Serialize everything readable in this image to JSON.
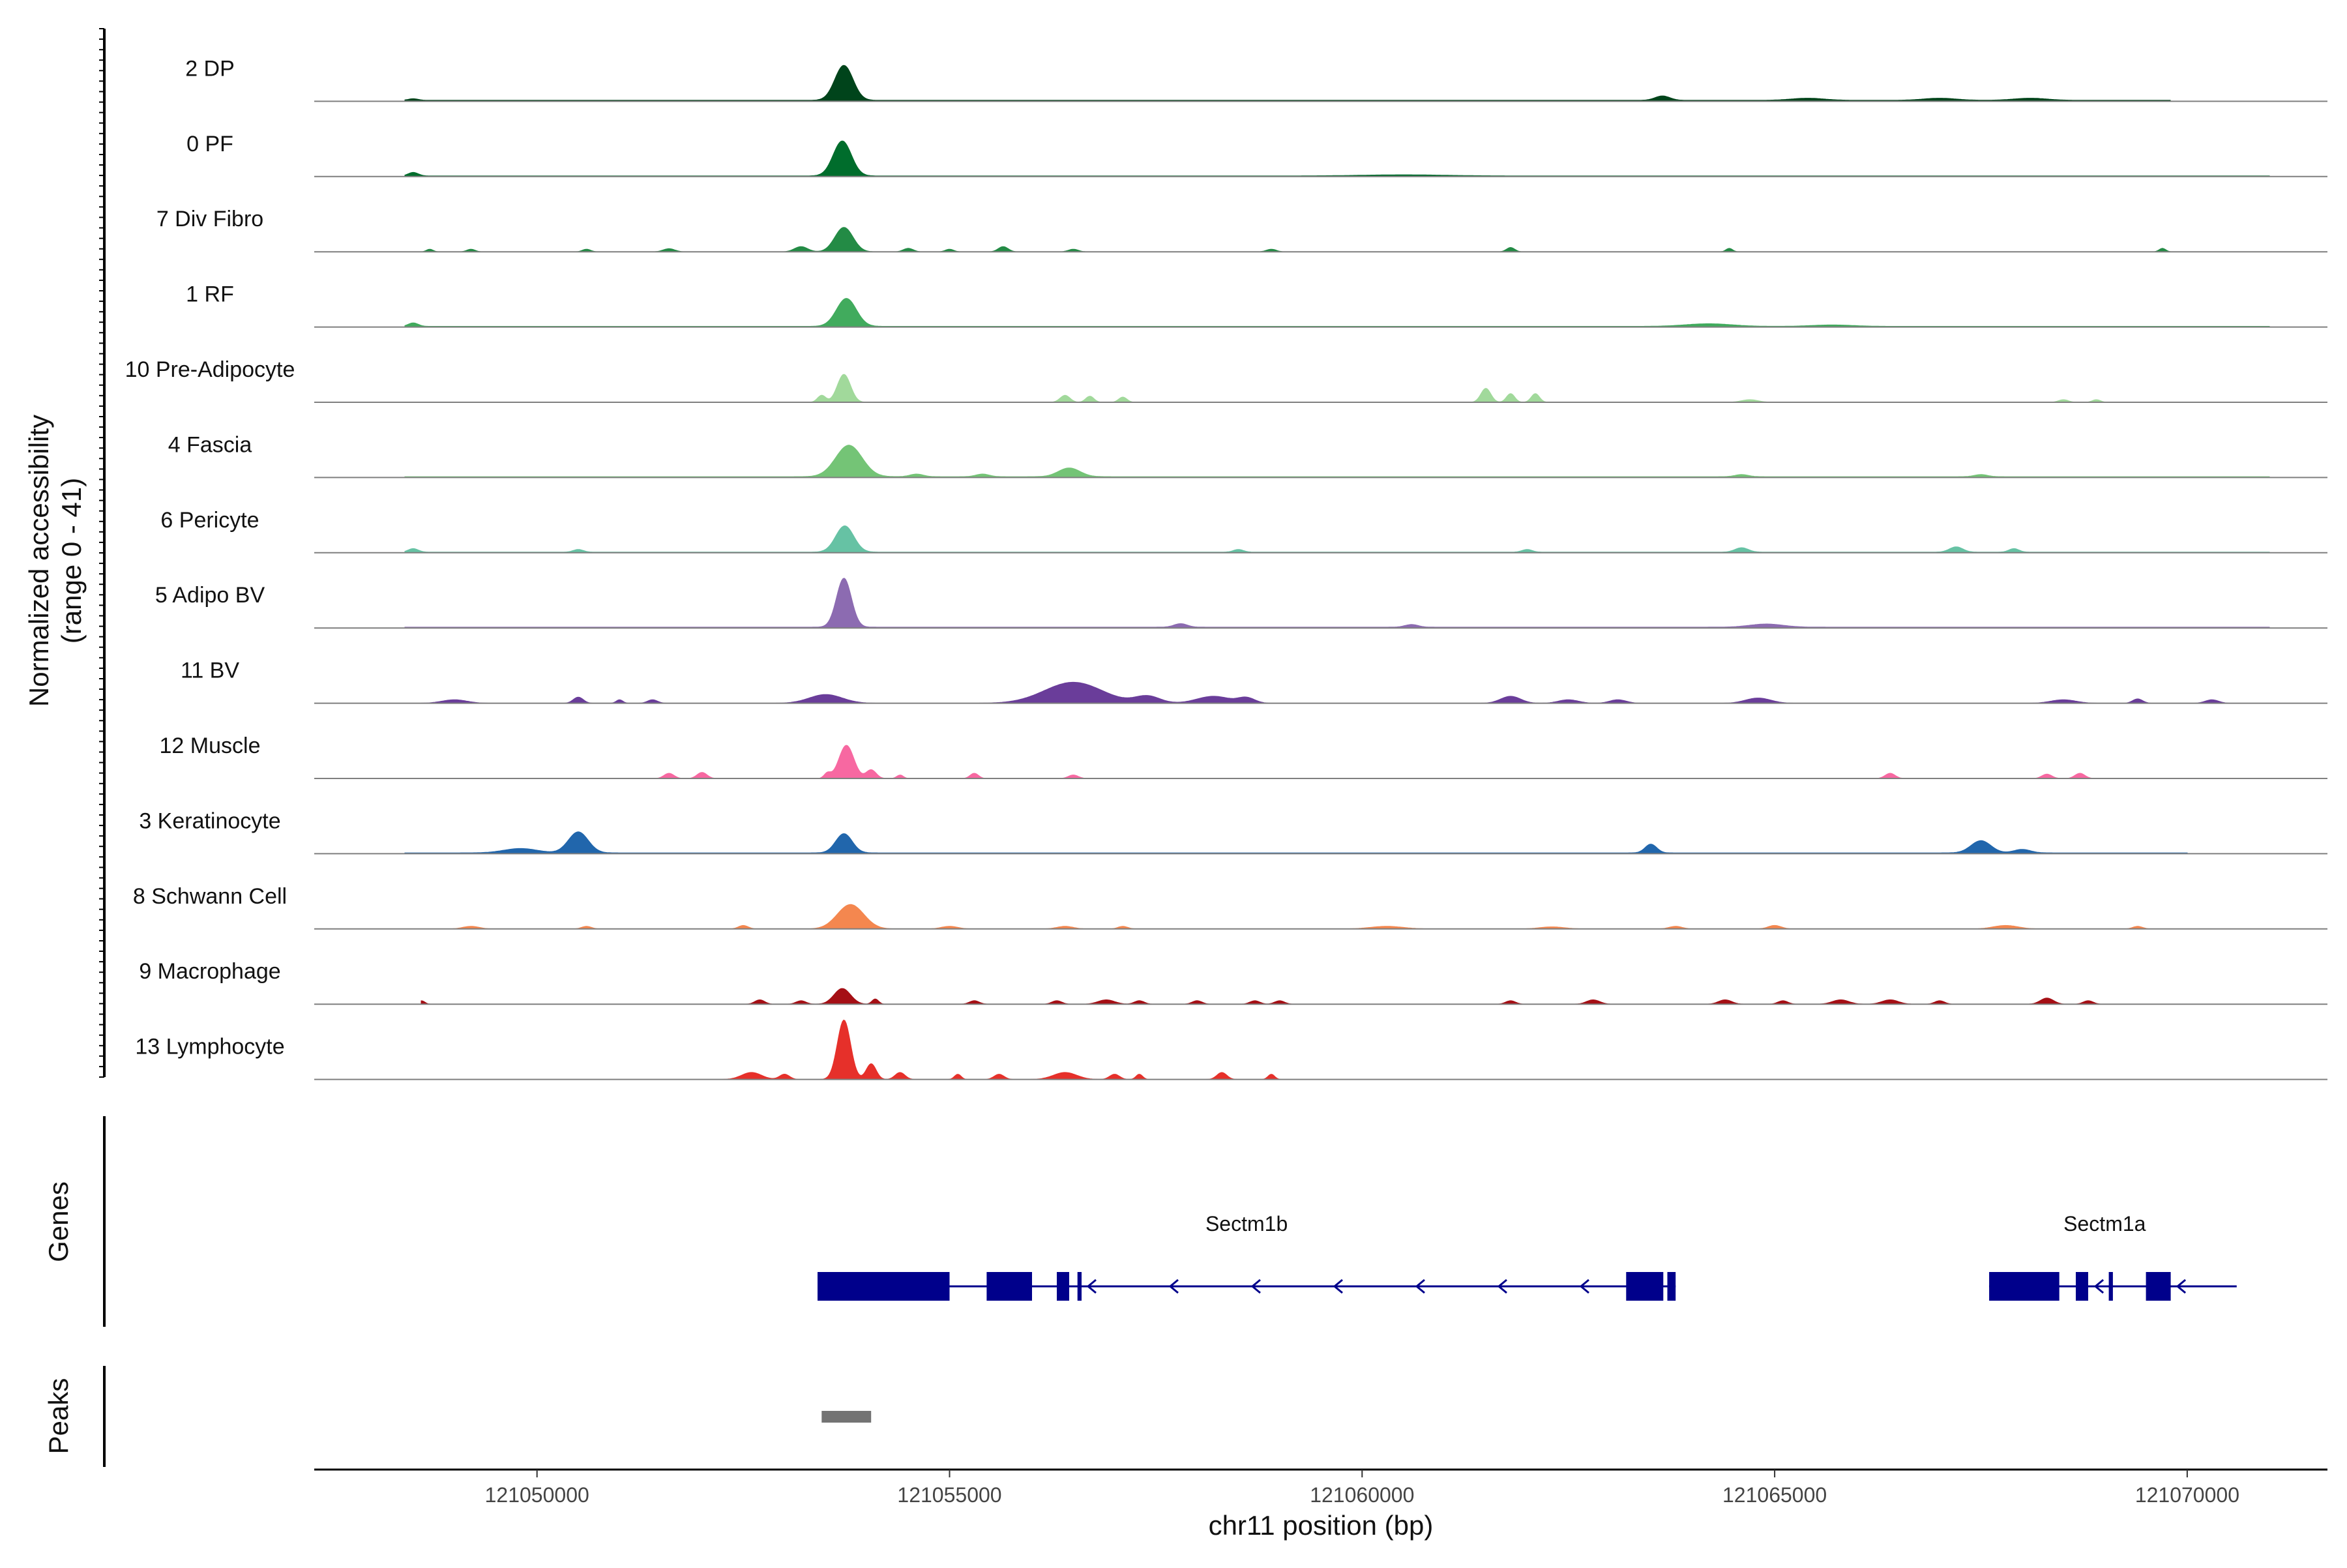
{
  "chart_data": {
    "type": "area",
    "y_axis_title_line1": "Normalized accessibility",
    "y_axis_title_line2": "(range 0 - 41)",
    "ylim": [
      0,
      41
    ],
    "xlabel": "chr11 position (bp)",
    "xlim": [
      121047300,
      121071700
    ],
    "x_ticks": [
      121050000,
      121055000,
      121060000,
      121065000,
      121070000
    ],
    "x_tick_labels": [
      "121050000",
      "121055000",
      "121060000",
      "121065000",
      "121070000"
    ],
    "panel_titles": {
      "genes": "Genes",
      "peaks": "Peaks"
    },
    "series": [
      {
        "name": "2 DP",
        "color": "#00441b",
        "baseline": 0.6,
        "start": 121048400,
        "end": 121069800,
        "peaks": [
          [
            121048500,
            60,
            0.9
          ],
          [
            121053720,
            110,
            20
          ],
          [
            121063640,
            90,
            2.5
          ],
          [
            121065400,
            200,
            1.2
          ],
          [
            121067000,
            200,
            1.2
          ],
          [
            121068100,
            200,
            1.2
          ]
        ]
      },
      {
        "name": "0 PF",
        "color": "#006d2c",
        "baseline": 0.4,
        "start": 121048400,
        "end": 121071000,
        "peaks": [
          [
            121048500,
            60,
            2
          ],
          [
            121053700,
            110,
            20
          ],
          [
            121060500,
            500,
            0.6
          ]
        ]
      },
      {
        "name": "7 Div Fibro",
        "color": "#238b45",
        "baseline": 0,
        "start": 121048500,
        "end": 121070000,
        "peaks": [
          [
            121048700,
            40,
            1.5
          ],
          [
            121049200,
            50,
            1.5
          ],
          [
            121050600,
            50,
            1.5
          ],
          [
            121051600,
            70,
            1.8
          ],
          [
            121053200,
            80,
            3
          ],
          [
            121053720,
            110,
            14
          ],
          [
            121054500,
            60,
            2
          ],
          [
            121055000,
            50,
            1.5
          ],
          [
            121055650,
            60,
            3
          ],
          [
            121056500,
            60,
            1.5
          ],
          [
            121058900,
            60,
            1.5
          ],
          [
            121061800,
            50,
            2.5
          ],
          [
            121064450,
            40,
            2
          ],
          [
            121069700,
            40,
            2
          ]
        ]
      },
      {
        "name": "1 RF",
        "color": "#41ab5d",
        "baseline": 0.4,
        "start": 121048400,
        "end": 121071000,
        "peaks": [
          [
            121048500,
            60,
            2
          ],
          [
            121053750,
            120,
            16
          ],
          [
            121064200,
            280,
            1.5
          ],
          [
            121065700,
            250,
            0.8
          ]
        ]
      },
      {
        "name": "10 Pre-Adipocyte",
        "color": "#a1d99b",
        "baseline": 0,
        "start": 121053000,
        "end": 121069500,
        "peaks": [
          [
            121053450,
            50,
            4
          ],
          [
            121053720,
            80,
            16
          ],
          [
            121056400,
            60,
            4
          ],
          [
            121056700,
            50,
            3.5
          ],
          [
            121057100,
            50,
            3
          ],
          [
            121061500,
            60,
            8
          ],
          [
            121061800,
            50,
            5
          ],
          [
            121062100,
            50,
            5
          ],
          [
            121064700,
            100,
            1.5
          ],
          [
            121068500,
            60,
            1.5
          ],
          [
            121068900,
            50,
            1.5
          ]
        ]
      },
      {
        "name": "4 Fascia",
        "color": "#74c476",
        "baseline": 0.5,
        "start": 121048400,
        "end": 121071000,
        "peaks": [
          [
            121053780,
            160,
            18
          ],
          [
            121054600,
            80,
            1.5
          ],
          [
            121055400,
            80,
            1.5
          ],
          [
            121056450,
            130,
            5
          ],
          [
            121064600,
            80,
            1.2
          ],
          [
            121067500,
            80,
            1.2
          ]
        ]
      },
      {
        "name": "6 Pericyte",
        "color": "#66c2a4",
        "baseline": 0.4,
        "start": 121048400,
        "end": 121071000,
        "peaks": [
          [
            121048500,
            60,
            2
          ],
          [
            121050500,
            60,
            1.5
          ],
          [
            121053730,
            110,
            15
          ],
          [
            121058500,
            60,
            1.5
          ],
          [
            121062000,
            60,
            1.5
          ],
          [
            121064600,
            80,
            2.5
          ],
          [
            121067200,
            80,
            3
          ],
          [
            121067900,
            60,
            2
          ]
        ]
      },
      {
        "name": "5 Adipo BV",
        "color": "#8c6bb1",
        "baseline": 0.5,
        "start": 121048400,
        "end": 121071000,
        "peaks": [
          [
            121053720,
            90,
            28
          ],
          [
            121057800,
            80,
            2
          ],
          [
            121060600,
            80,
            1.5
          ],
          [
            121064900,
            200,
            1.8
          ]
        ]
      },
      {
        "name": "11 BV",
        "color": "#6a3d9a",
        "baseline": 0,
        "start": 121048500,
        "end": 121070700,
        "peaks": [
          [
            121049000,
            150,
            2
          ],
          [
            121050500,
            60,
            3.5
          ],
          [
            121051000,
            40,
            2
          ],
          [
            121051400,
            60,
            2
          ],
          [
            121053500,
            200,
            5
          ],
          [
            121056500,
            350,
            12
          ],
          [
            121057400,
            150,
            4
          ],
          [
            121058200,
            200,
            4
          ],
          [
            121058600,
            100,
            3
          ],
          [
            121061800,
            120,
            4
          ],
          [
            121062500,
            120,
            2
          ],
          [
            121063100,
            100,
            2
          ],
          [
            121064800,
            150,
            3
          ],
          [
            121068500,
            150,
            2
          ],
          [
            121069400,
            60,
            2.5
          ],
          [
            121070300,
            80,
            2
          ]
        ]
      },
      {
        "name": "12 Muscle",
        "color": "#f768a1",
        "baseline": 0,
        "start": 121051400,
        "end": 121069000,
        "peaks": [
          [
            121051600,
            60,
            3
          ],
          [
            121052000,
            60,
            3.5
          ],
          [
            121053520,
            40,
            3
          ],
          [
            121053750,
            90,
            19
          ],
          [
            121054050,
            60,
            5
          ],
          [
            121054400,
            40,
            2
          ],
          [
            121055300,
            50,
            3
          ],
          [
            121056500,
            60,
            2
          ],
          [
            121066400,
            60,
            3
          ],
          [
            121068300,
            60,
            2.5
          ],
          [
            121068700,
            60,
            3
          ]
        ]
      },
      {
        "name": "3 Keratinocyte",
        "color": "#2166ac",
        "baseline": 0.5,
        "start": 121048400,
        "end": 121070000,
        "peaks": [
          [
            121050500,
            120,
            12
          ],
          [
            121049800,
            200,
            2.5
          ],
          [
            121053720,
            100,
            11
          ],
          [
            121063500,
            70,
            5
          ],
          [
            121067500,
            120,
            7
          ],
          [
            121068000,
            100,
            2
          ]
        ]
      },
      {
        "name": "8 Schwann Cell",
        "color": "#f4874f",
        "baseline": 0,
        "start": 121048600,
        "end": 121069600,
        "peaks": [
          [
            121049200,
            100,
            1.5
          ],
          [
            121050600,
            60,
            1.5
          ],
          [
            121052500,
            60,
            2
          ],
          [
            121053800,
            160,
            14
          ],
          [
            121055000,
            100,
            1.5
          ],
          [
            121056400,
            100,
            1.5
          ],
          [
            121057100,
            60,
            1.5
          ],
          [
            121060300,
            200,
            1.5
          ],
          [
            121062300,
            150,
            1.2
          ],
          [
            121063800,
            80,
            1.5
          ],
          [
            121065000,
            80,
            2
          ],
          [
            121067800,
            150,
            2
          ],
          [
            121069400,
            60,
            1.5
          ]
        ]
      },
      {
        "name": "9 Macrophage",
        "color": "#a50f15",
        "baseline": 0,
        "start": 121048600,
        "end": 121069500,
        "peaks": [
          [
            121048600,
            40,
            2
          ],
          [
            121052700,
            60,
            2.5
          ],
          [
            121053200,
            60,
            2
          ],
          [
            121053700,
            100,
            9
          ],
          [
            121054100,
            40,
            3
          ],
          [
            121055300,
            60,
            2
          ],
          [
            121056300,
            60,
            2
          ],
          [
            121056900,
            100,
            2.5
          ],
          [
            121057300,
            60,
            2
          ],
          [
            121058000,
            60,
            2
          ],
          [
            121058700,
            60,
            2
          ],
          [
            121059000,
            60,
            2
          ],
          [
            121061800,
            60,
            2
          ],
          [
            121062800,
            80,
            2.5
          ],
          [
            121064400,
            80,
            2.5
          ],
          [
            121065100,
            60,
            2
          ],
          [
            121065800,
            100,
            2.5
          ],
          [
            121066400,
            100,
            2.5
          ],
          [
            121067000,
            60,
            2
          ],
          [
            121068300,
            80,
            3.5
          ],
          [
            121068800,
            60,
            2
          ]
        ]
      },
      {
        "name": "13 Lymphocyte",
        "color": "#e6302a",
        "baseline": 0,
        "start": 121052000,
        "end": 121059500,
        "peaks": [
          [
            121052600,
            120,
            4
          ],
          [
            121053000,
            60,
            3
          ],
          [
            121053720,
            80,
            34
          ],
          [
            121054050,
            60,
            9
          ],
          [
            121054400,
            60,
            4
          ],
          [
            121055100,
            40,
            3
          ],
          [
            121055600,
            60,
            3
          ],
          [
            121056400,
            140,
            4
          ],
          [
            121057000,
            60,
            3
          ],
          [
            121057300,
            40,
            3
          ],
          [
            121058300,
            60,
            4
          ],
          [
            121058900,
            40,
            3
          ]
        ]
      }
    ],
    "genes": [
      {
        "name": "Sectm1b",
        "strand": "-",
        "start": 121053400,
        "end": 121063800,
        "exons": [
          [
            121053400,
            121055000
          ],
          [
            121055450,
            121056000
          ],
          [
            121056300,
            121056450
          ],
          [
            121056550,
            121056600
          ],
          [
            121063200,
            121063650
          ],
          [
            121063700,
            121063800
          ]
        ],
        "label_pos": 121058600
      },
      {
        "name": "Sectm1a",
        "strand": "-",
        "start": 121067600,
        "end": 121070600,
        "exons": [
          [
            121067600,
            121068450
          ],
          [
            121068650,
            121068800
          ],
          [
            121069050,
            121069100
          ],
          [
            121069500,
            121069800
          ]
        ],
        "label_pos": 121069000
      }
    ],
    "peaks_track": [
      {
        "start": 121053450,
        "end": 121054050,
        "color": "#737373"
      }
    ],
    "gene_color": "#00008b"
  }
}
